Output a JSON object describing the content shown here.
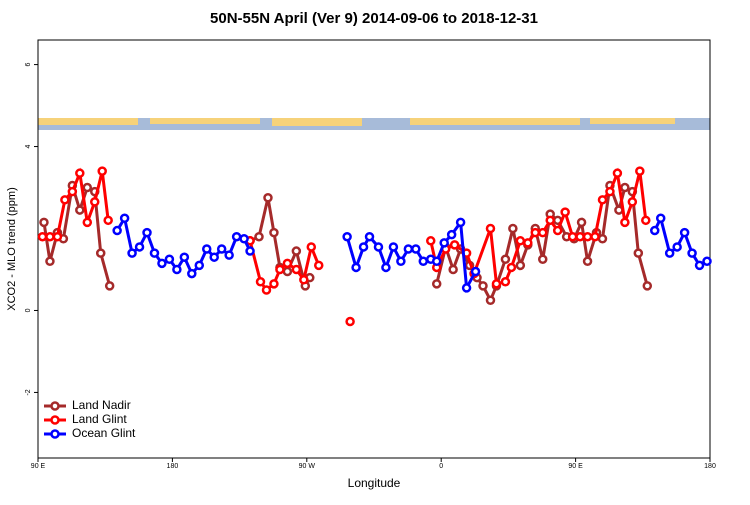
{
  "chart_data": {
    "type": "line",
    "title": "50N-55N April (Ver 9)   2014-09-06 to 2018-12-31",
    "x_label": "Longitude",
    "y_label": "XCO2 - MLO trend (ppm)",
    "xlim": [
      90,
      540
    ],
    "xticks": [
      {
        "value": 90,
        "label": "90 E"
      },
      {
        "value": 180,
        "label": "180"
      },
      {
        "value": 270,
        "label": "90 W"
      },
      {
        "value": 360,
        "label": "0"
      },
      {
        "value": 450,
        "label": "90 E"
      },
      {
        "value": 540,
        "label": "180"
      }
    ],
    "ylim": [
      -3.6,
      6.6
    ],
    "yticks": [
      -2,
      0,
      4,
      6
    ],
    "legend": "bottom-left",
    "series": [
      {
        "name": "Land Nadir",
        "color": "#a52a2a",
        "x": [
          94,
          98,
          103,
          107,
          113,
          118,
          123,
          128,
          132,
          138,
          null,
          232,
          238,
          244,
          248,
          252,
          257,
          263,
          269,
          272,
          null,
          357,
          363,
          368,
          373,
          379,
          384,
          388,
          393,
          397,
          403,
          408,
          413,
          418,
          423,
          428,
          433,
          438,
          444,
          449,
          454,
          458,
          464,
          468,
          473,
          479,
          483,
          488,
          492,
          498
        ],
        "values": [
          2.15,
          1.2,
          1.9,
          1.75,
          3.05,
          2.45,
          3.0,
          2.9,
          1.4,
          0.6,
          null,
          1.7,
          1.8,
          2.75,
          1.9,
          1.05,
          0.95,
          1.45,
          0.6,
          0.8,
          null,
          0.65,
          1.55,
          1.0,
          1.5,
          1.1,
          0.8,
          0.6,
          0.25,
          0.6,
          1.25,
          2.0,
          1.1,
          1.6,
          2.0,
          1.25,
          2.35,
          2.2,
          1.8,
          1.75,
          2.15,
          1.2,
          1.9,
          1.75,
          3.05,
          2.45,
          3.0,
          2.9,
          1.4,
          0.6
        ]
      },
      {
        "name": "Land Glint",
        "color": "#ff0000",
        "x": [
          93,
          98,
          103,
          108,
          113,
          118,
          123,
          128,
          133,
          137,
          null,
          232,
          239,
          243,
          248,
          252,
          257,
          263,
          268,
          273,
          278,
          null,
          299,
          null,
          353,
          357,
          363,
          369,
          377,
          382,
          393,
          397,
          403,
          407,
          413,
          418,
          423,
          428,
          433,
          438,
          443,
          448,
          453,
          458,
          463,
          468,
          473,
          478,
          483,
          488,
          493,
          497
        ],
        "values": [
          1.8,
          1.8,
          1.8,
          2.7,
          2.9,
          3.35,
          2.15,
          2.65,
          3.4,
          2.2,
          null,
          1.7,
          0.7,
          0.5,
          0.65,
          1.0,
          1.15,
          1.0,
          0.75,
          1.55,
          1.1,
          null,
          -0.27,
          null,
          1.7,
          1.05,
          1.5,
          1.6,
          1.4,
          0.9,
          2.0,
          0.65,
          0.7,
          1.05,
          1.7,
          1.65,
          1.9,
          1.9,
          2.2,
          1.95,
          2.4,
          1.8,
          1.8,
          1.8,
          1.8,
          2.7,
          2.9,
          3.35,
          2.15,
          2.65,
          3.4,
          2.2
        ]
      },
      {
        "name": "Ocean Glint",
        "color": "#0000ff",
        "x": [
          143,
          148,
          153,
          158,
          163,
          168,
          173,
          178,
          183,
          188,
          193,
          198,
          203,
          208,
          213,
          218,
          223,
          228,
          232,
          null,
          297,
          303,
          308,
          312,
          318,
          323,
          328,
          333,
          338,
          343,
          348,
          353,
          357,
          362,
          367,
          373,
          377,
          383,
          null,
          503,
          507,
          513,
          518,
          523,
          528,
          533,
          538
        ],
        "values": [
          1.95,
          2.25,
          1.4,
          1.55,
          1.9,
          1.4,
          1.15,
          1.25,
          1.0,
          1.3,
          0.9,
          1.1,
          1.5,
          1.3,
          1.5,
          1.35,
          1.8,
          1.75,
          1.45,
          null,
          1.8,
          1.05,
          1.55,
          1.8,
          1.55,
          1.05,
          1.55,
          1.2,
          1.5,
          1.5,
          1.2,
          1.25,
          1.2,
          1.65,
          1.85,
          2.15,
          0.55,
          0.95,
          null,
          1.95,
          2.25,
          1.4,
          1.55,
          1.9,
          1.4,
          1.1,
          1.2
        ]
      }
    ]
  }
}
